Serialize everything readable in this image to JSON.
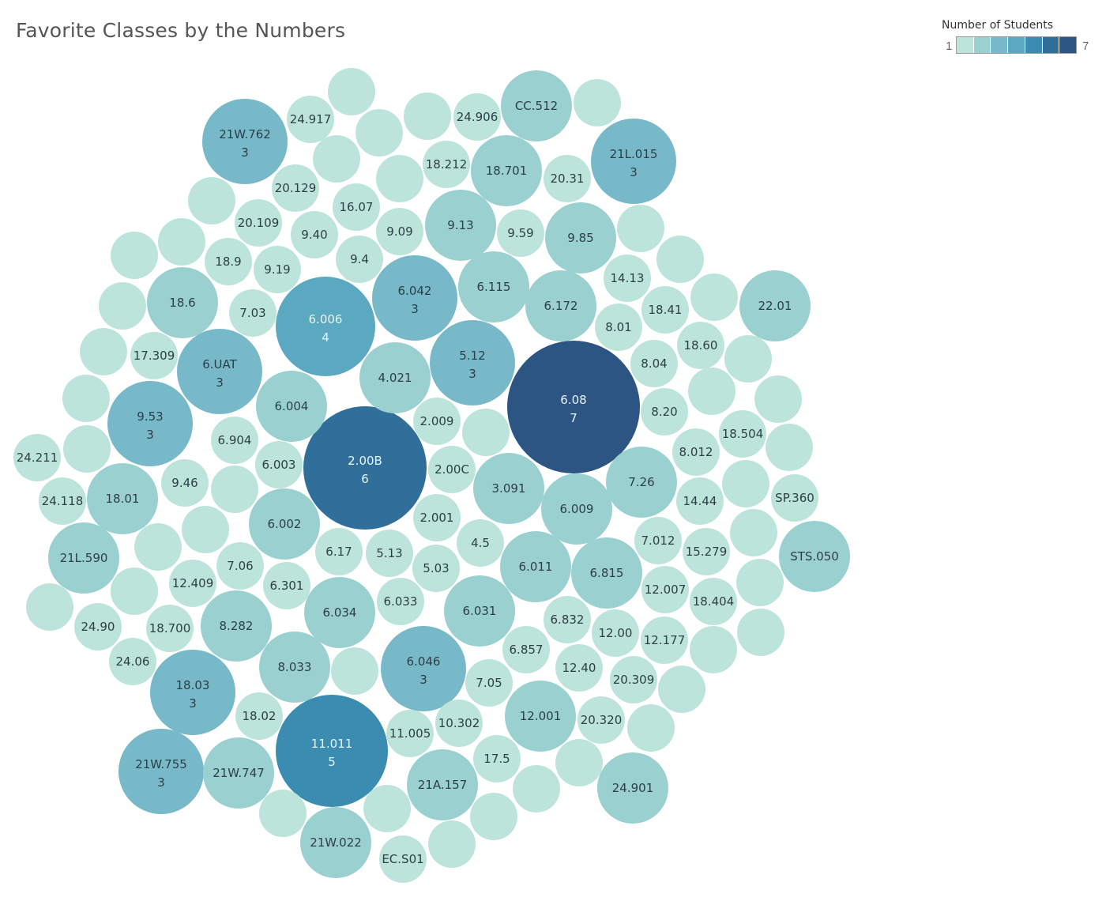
{
  "chart_data": {
    "type": "packed-bubble",
    "title": "Favorite Classes by the Numbers",
    "legend": {
      "title": "Number of Students",
      "min": "1",
      "max": "7",
      "position": "top-right"
    },
    "colors": [
      "#bde4da",
      "#9bd0d1",
      "#77b9c8",
      "#5aa9c0",
      "#3a8cb0",
      "#2f6f9a",
      "#2d5584"
    ],
    "points": [
      {
        "label": "6.08",
        "value": 7
      },
      {
        "label": "2.00B",
        "value": 6
      },
      {
        "label": "11.011",
        "value": 5
      },
      {
        "label": "6.006",
        "value": 4
      },
      {
        "label": "21W.762",
        "value": 3
      },
      {
        "label": "21L.015",
        "value": 3
      },
      {
        "label": "6.042",
        "value": 3
      },
      {
        "label": "5.12",
        "value": 3
      },
      {
        "label": "6.UAT",
        "value": 3
      },
      {
        "label": "9.53",
        "value": 3
      },
      {
        "label": "18.03",
        "value": 3
      },
      {
        "label": "21W.755",
        "value": 3
      },
      {
        "label": "6.046",
        "value": 3
      },
      {
        "label": "CC.512",
        "value": 2
      },
      {
        "label": "18.701",
        "value": 2
      },
      {
        "label": "9.13",
        "value": 2
      },
      {
        "label": "9.85",
        "value": 2
      },
      {
        "label": "6.115",
        "value": 2
      },
      {
        "label": "6.172",
        "value": 2
      },
      {
        "label": "22.01",
        "value": 2
      },
      {
        "label": "18.6",
        "value": 2
      },
      {
        "label": "4.021",
        "value": 2
      },
      {
        "label": "6.004",
        "value": 2
      },
      {
        "label": "18.01",
        "value": 2
      },
      {
        "label": "21L.590",
        "value": 2
      },
      {
        "label": "6.002",
        "value": 2
      },
      {
        "label": "3.091",
        "value": 2
      },
      {
        "label": "6.009",
        "value": 2
      },
      {
        "label": "7.26",
        "value": 2
      },
      {
        "label": "STS.050",
        "value": 2
      },
      {
        "label": "6.011",
        "value": 2
      },
      {
        "label": "6.815",
        "value": 2
      },
      {
        "label": "6.031",
        "value": 2
      },
      {
        "label": "6.034",
        "value": 2
      },
      {
        "label": "8.282",
        "value": 2
      },
      {
        "label": "8.033",
        "value": 2
      },
      {
        "label": "12.001",
        "value": 2
      },
      {
        "label": "24.901",
        "value": 2
      },
      {
        "label": "21W.747",
        "value": 2
      },
      {
        "label": "21A.157",
        "value": 2
      },
      {
        "label": "21W.022",
        "value": 2
      },
      {
        "label": "24.917",
        "value": 1
      },
      {
        "label": "24.906",
        "value": 1
      },
      {
        "label": "18.212",
        "value": 1
      },
      {
        "label": "20.31",
        "value": 1
      },
      {
        "label": "20.129",
        "value": 1
      },
      {
        "label": "16.07",
        "value": 1
      },
      {
        "label": "20.109",
        "value": 1
      },
      {
        "label": "9.40",
        "value": 1
      },
      {
        "label": "9.09",
        "value": 1
      },
      {
        "label": "9.59",
        "value": 1
      },
      {
        "label": "18.9",
        "value": 1
      },
      {
        "label": "9.19",
        "value": 1
      },
      {
        "label": "9.4",
        "value": 1
      },
      {
        "label": "14.13",
        "value": 1
      },
      {
        "label": "7.03",
        "value": 1
      },
      {
        "label": "18.41",
        "value": 1
      },
      {
        "label": "8.01",
        "value": 1
      },
      {
        "label": "18.60",
        "value": 1
      },
      {
        "label": "17.309",
        "value": 1
      },
      {
        "label": "8.04",
        "value": 1
      },
      {
        "label": "8.20",
        "value": 1
      },
      {
        "label": "2.009",
        "value": 1
      },
      {
        "label": "6.904",
        "value": 1
      },
      {
        "label": "18.504",
        "value": 1
      },
      {
        "label": "24.211",
        "value": 1
      },
      {
        "label": "6.003",
        "value": 1
      },
      {
        "label": "2.00C",
        "value": 1
      },
      {
        "label": "8.012",
        "value": 1
      },
      {
        "label": "9.46",
        "value": 1
      },
      {
        "label": "24.118",
        "value": 1
      },
      {
        "label": "14.44",
        "value": 1
      },
      {
        "label": "SP.360",
        "value": 1
      },
      {
        "label": "2.001",
        "value": 1
      },
      {
        "label": "7.012",
        "value": 1
      },
      {
        "label": "4.5",
        "value": 1
      },
      {
        "label": "15.279",
        "value": 1
      },
      {
        "label": "6.17",
        "value": 1
      },
      {
        "label": "5.13",
        "value": 1
      },
      {
        "label": "7.06",
        "value": 1
      },
      {
        "label": "5.03",
        "value": 1
      },
      {
        "label": "12.409",
        "value": 1
      },
      {
        "label": "6.301",
        "value": 1
      },
      {
        "label": "12.007",
        "value": 1
      },
      {
        "label": "6.033",
        "value": 1
      },
      {
        "label": "18.404",
        "value": 1
      },
      {
        "label": "6.832",
        "value": 1
      },
      {
        "label": "24.90",
        "value": 1
      },
      {
        "label": "18.700",
        "value": 1
      },
      {
        "label": "12.00",
        "value": 1
      },
      {
        "label": "12.177",
        "value": 1
      },
      {
        "label": "6.857",
        "value": 1
      },
      {
        "label": "24.06",
        "value": 1
      },
      {
        "label": "12.40",
        "value": 1
      },
      {
        "label": "7.05",
        "value": 1
      },
      {
        "label": "20.309",
        "value": 1
      },
      {
        "label": "18.02",
        "value": 1
      },
      {
        "label": "10.302",
        "value": 1
      },
      {
        "label": "20.320",
        "value": 1
      },
      {
        "label": "11.005",
        "value": 1
      },
      {
        "label": "17.5",
        "value": 1
      },
      {
        "label": "EC.S01",
        "value": 1
      },
      {
        "label": "",
        "value": 1
      },
      {
        "label": "",
        "value": 1
      },
      {
        "label": "",
        "value": 1
      },
      {
        "label": "",
        "value": 1
      },
      {
        "label": "",
        "value": 1
      },
      {
        "label": "",
        "value": 1
      },
      {
        "label": "",
        "value": 1
      },
      {
        "label": "",
        "value": 1
      },
      {
        "label": "",
        "value": 1
      },
      {
        "label": "",
        "value": 1
      },
      {
        "label": "",
        "value": 1
      },
      {
        "label": "",
        "value": 1
      },
      {
        "label": "",
        "value": 1
      },
      {
        "label": "",
        "value": 1
      },
      {
        "label": "",
        "value": 1
      },
      {
        "label": "",
        "value": 1
      },
      {
        "label": "",
        "value": 1
      },
      {
        "label": "",
        "value": 1
      },
      {
        "label": "",
        "value": 1
      },
      {
        "label": "",
        "value": 1
      },
      {
        "label": "",
        "value": 1
      },
      {
        "label": "",
        "value": 1
      },
      {
        "label": "",
        "value": 1
      },
      {
        "label": "",
        "value": 1
      },
      {
        "label": "",
        "value": 1
      },
      {
        "label": "",
        "value": 1
      },
      {
        "label": "",
        "value": 1
      },
      {
        "label": "",
        "value": 1
      },
      {
        "label": "",
        "value": 1
      },
      {
        "label": "",
        "value": 1
      },
      {
        "label": "",
        "value": 1
      },
      {
        "label": "",
        "value": 1
      },
      {
        "label": "",
        "value": 1
      },
      {
        "label": "",
        "value": 1
      },
      {
        "label": "",
        "value": 1
      },
      {
        "label": "",
        "value": 1
      },
      {
        "label": "",
        "value": 1
      },
      {
        "label": "",
        "value": 1
      },
      {
        "label": "",
        "value": 1
      },
      {
        "label": "",
        "value": 1
      },
      {
        "label": "",
        "value": 1
      },
      {
        "label": "",
        "value": 1
      },
      {
        "label": "",
        "value": 1
      },
      {
        "label": "",
        "value": 1
      },
      {
        "label": "",
        "value": 1
      },
      {
        "label": "",
        "value": 1
      },
      {
        "label": "",
        "value": 1
      },
      {
        "label": "",
        "value": 1
      },
      {
        "label": "",
        "value": 1
      },
      {
        "label": "",
        "value": 1
      }
    ]
  }
}
